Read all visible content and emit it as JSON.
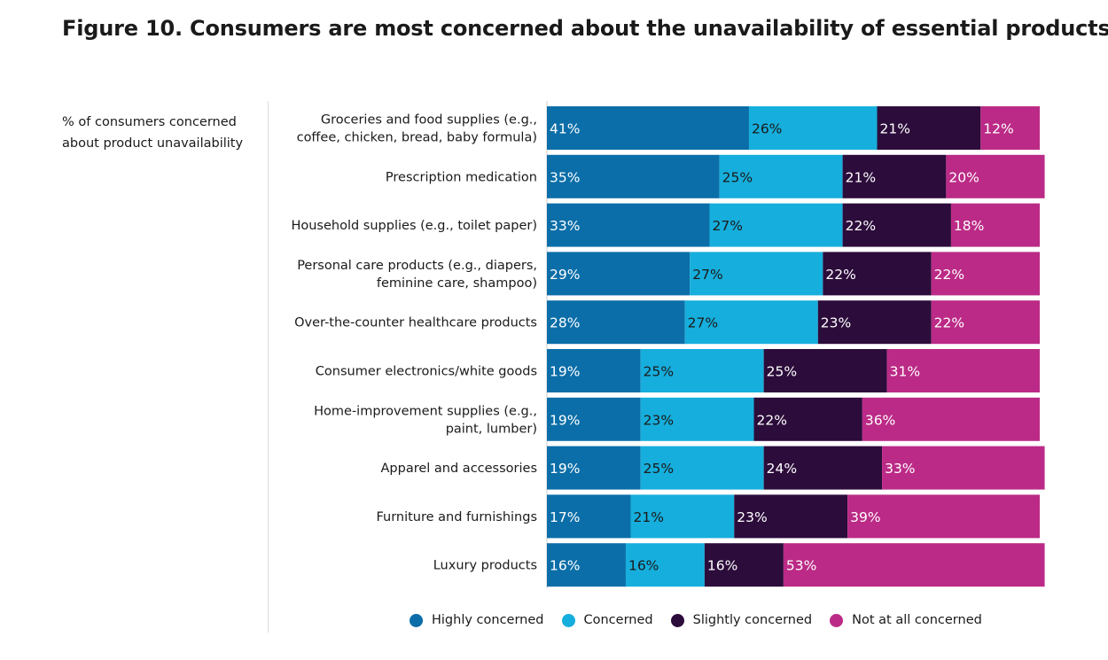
{
  "title": "Figure 10. Consumers are most concerned about the unavailability of essential products",
  "subtitle": "% of consumers concerned about product unavailability",
  "colors": {
    "highly": "#0b6ea8",
    "concerned": "#16aedc",
    "slightly": "#2c0c3b",
    "not_at_all": "#bb2a86"
  },
  "legend": [
    {
      "label": "Highly concerned",
      "color": "#0b6ea8"
    },
    {
      "label": "Concerned",
      "color": "#16aedc"
    },
    {
      "label": "Slightly concerned",
      "color": "#2c0c3b"
    },
    {
      "label": "Not at all concerned",
      "color": "#bb2a86"
    }
  ],
  "chart_data": {
    "type": "bar",
    "orientation": "horizontal",
    "stacked": true,
    "unit": "%",
    "categories": [
      [
        "Groceries and food supplies (e.g.,",
        "coffee, chicken, bread, baby formula)"
      ],
      [
        "Prescription medication"
      ],
      [
        "Household supplies (e.g., toilet paper)"
      ],
      [
        "Personal care products (e.g., diapers,",
        "feminine care, shampoo)"
      ],
      [
        "Over-the-counter healthcare products"
      ],
      [
        "Consumer electronics/white goods"
      ],
      [
        "Home-improvement supplies (e.g.,",
        "paint, lumber)"
      ],
      [
        "Apparel and accessories"
      ],
      [
        "Furniture and furnishings"
      ],
      [
        "Luxury products"
      ]
    ],
    "series": [
      {
        "name": "Highly concerned",
        "values": [
          41,
          35,
          33,
          29,
          28,
          19,
          19,
          19,
          17,
          16
        ]
      },
      {
        "name": "Concerned",
        "values": [
          26,
          25,
          27,
          27,
          27,
          25,
          23,
          25,
          21,
          16
        ]
      },
      {
        "name": "Slightly concerned",
        "values": [
          21,
          21,
          22,
          22,
          23,
          25,
          22,
          24,
          23,
          16
        ]
      },
      {
        "name": "Not at all concerned",
        "values": [
          12,
          20,
          18,
          22,
          22,
          31,
          36,
          33,
          39,
          53
        ]
      }
    ],
    "xlim": [
      0,
      100
    ],
    "legend_position": "bottom"
  }
}
